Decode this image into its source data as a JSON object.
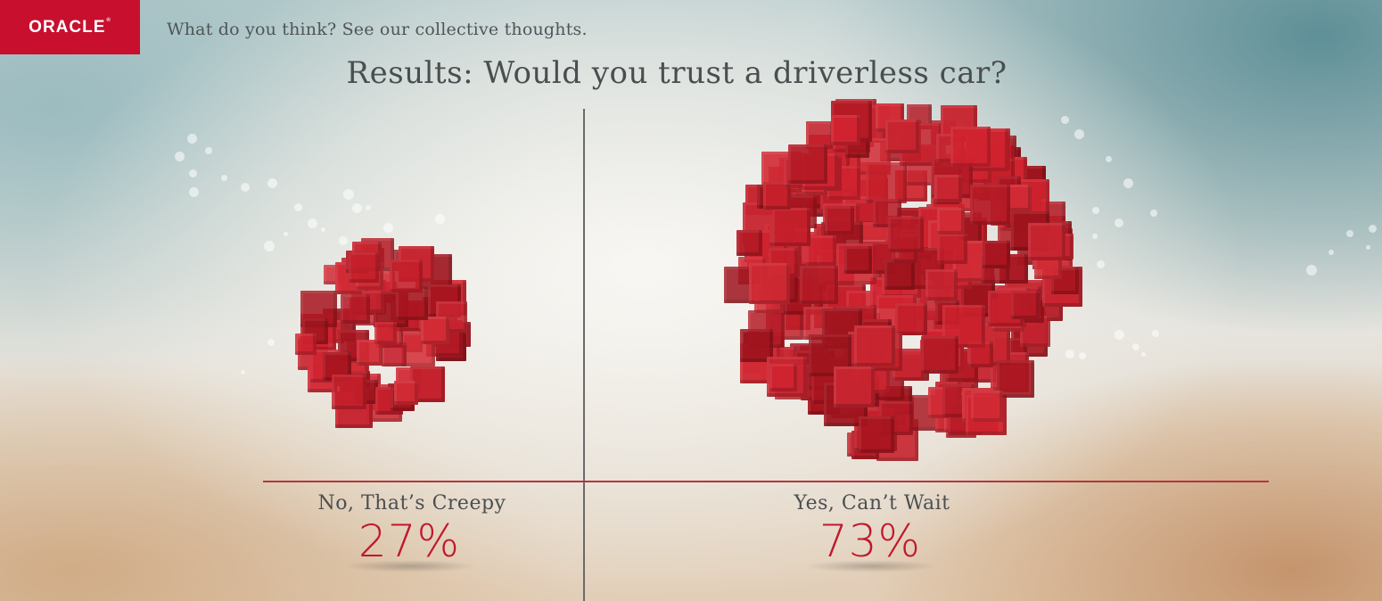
{
  "brand": {
    "logo_text": "ORACLE",
    "color": "#c8102e"
  },
  "header": {
    "tagline": "What do you think? See our collective thoughts."
  },
  "poll": {
    "title": "Results: Would you trust a driverless car?",
    "answers": [
      {
        "label": "No, That’s Creepy",
        "percent": "27%",
        "value": 27
      },
      {
        "label": "Yes, Can’t Wait",
        "percent": "73%",
        "value": 73
      }
    ],
    "accent_color": "#c0182b",
    "cube_color": "#c41f2a"
  }
}
